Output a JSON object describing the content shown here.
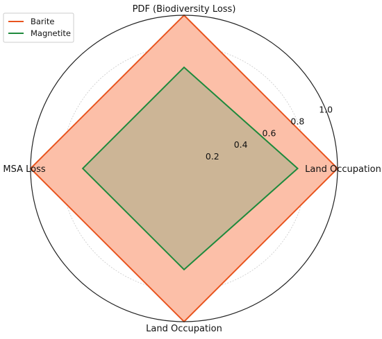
{
  "chart_data": {
    "type": "radar",
    "axes": [
      "PDF (Biodiversity Loss)",
      "Land Occupation",
      "Land Occupation",
      "MSA Loss"
    ],
    "rlim": [
      0,
      1.0
    ],
    "rticks": [
      "0.2",
      "0.4",
      "0.6",
      "0.8",
      "1.0"
    ],
    "rtick_values": [
      0.2,
      0.4,
      0.6,
      0.8,
      1.0
    ],
    "grid": true,
    "legend_position": "top-left",
    "series": [
      {
        "name": "Barite",
        "values": [
          1.0,
          1.0,
          1.0,
          1.0
        ],
        "color": "#e8541e",
        "fill": "#fcbfa8"
      },
      {
        "name": "Magnetite",
        "values": [
          0.66,
          0.74,
          0.66,
          0.66
        ],
        "color": "#1e8a3c",
        "fill": "#c9b495"
      }
    ]
  }
}
